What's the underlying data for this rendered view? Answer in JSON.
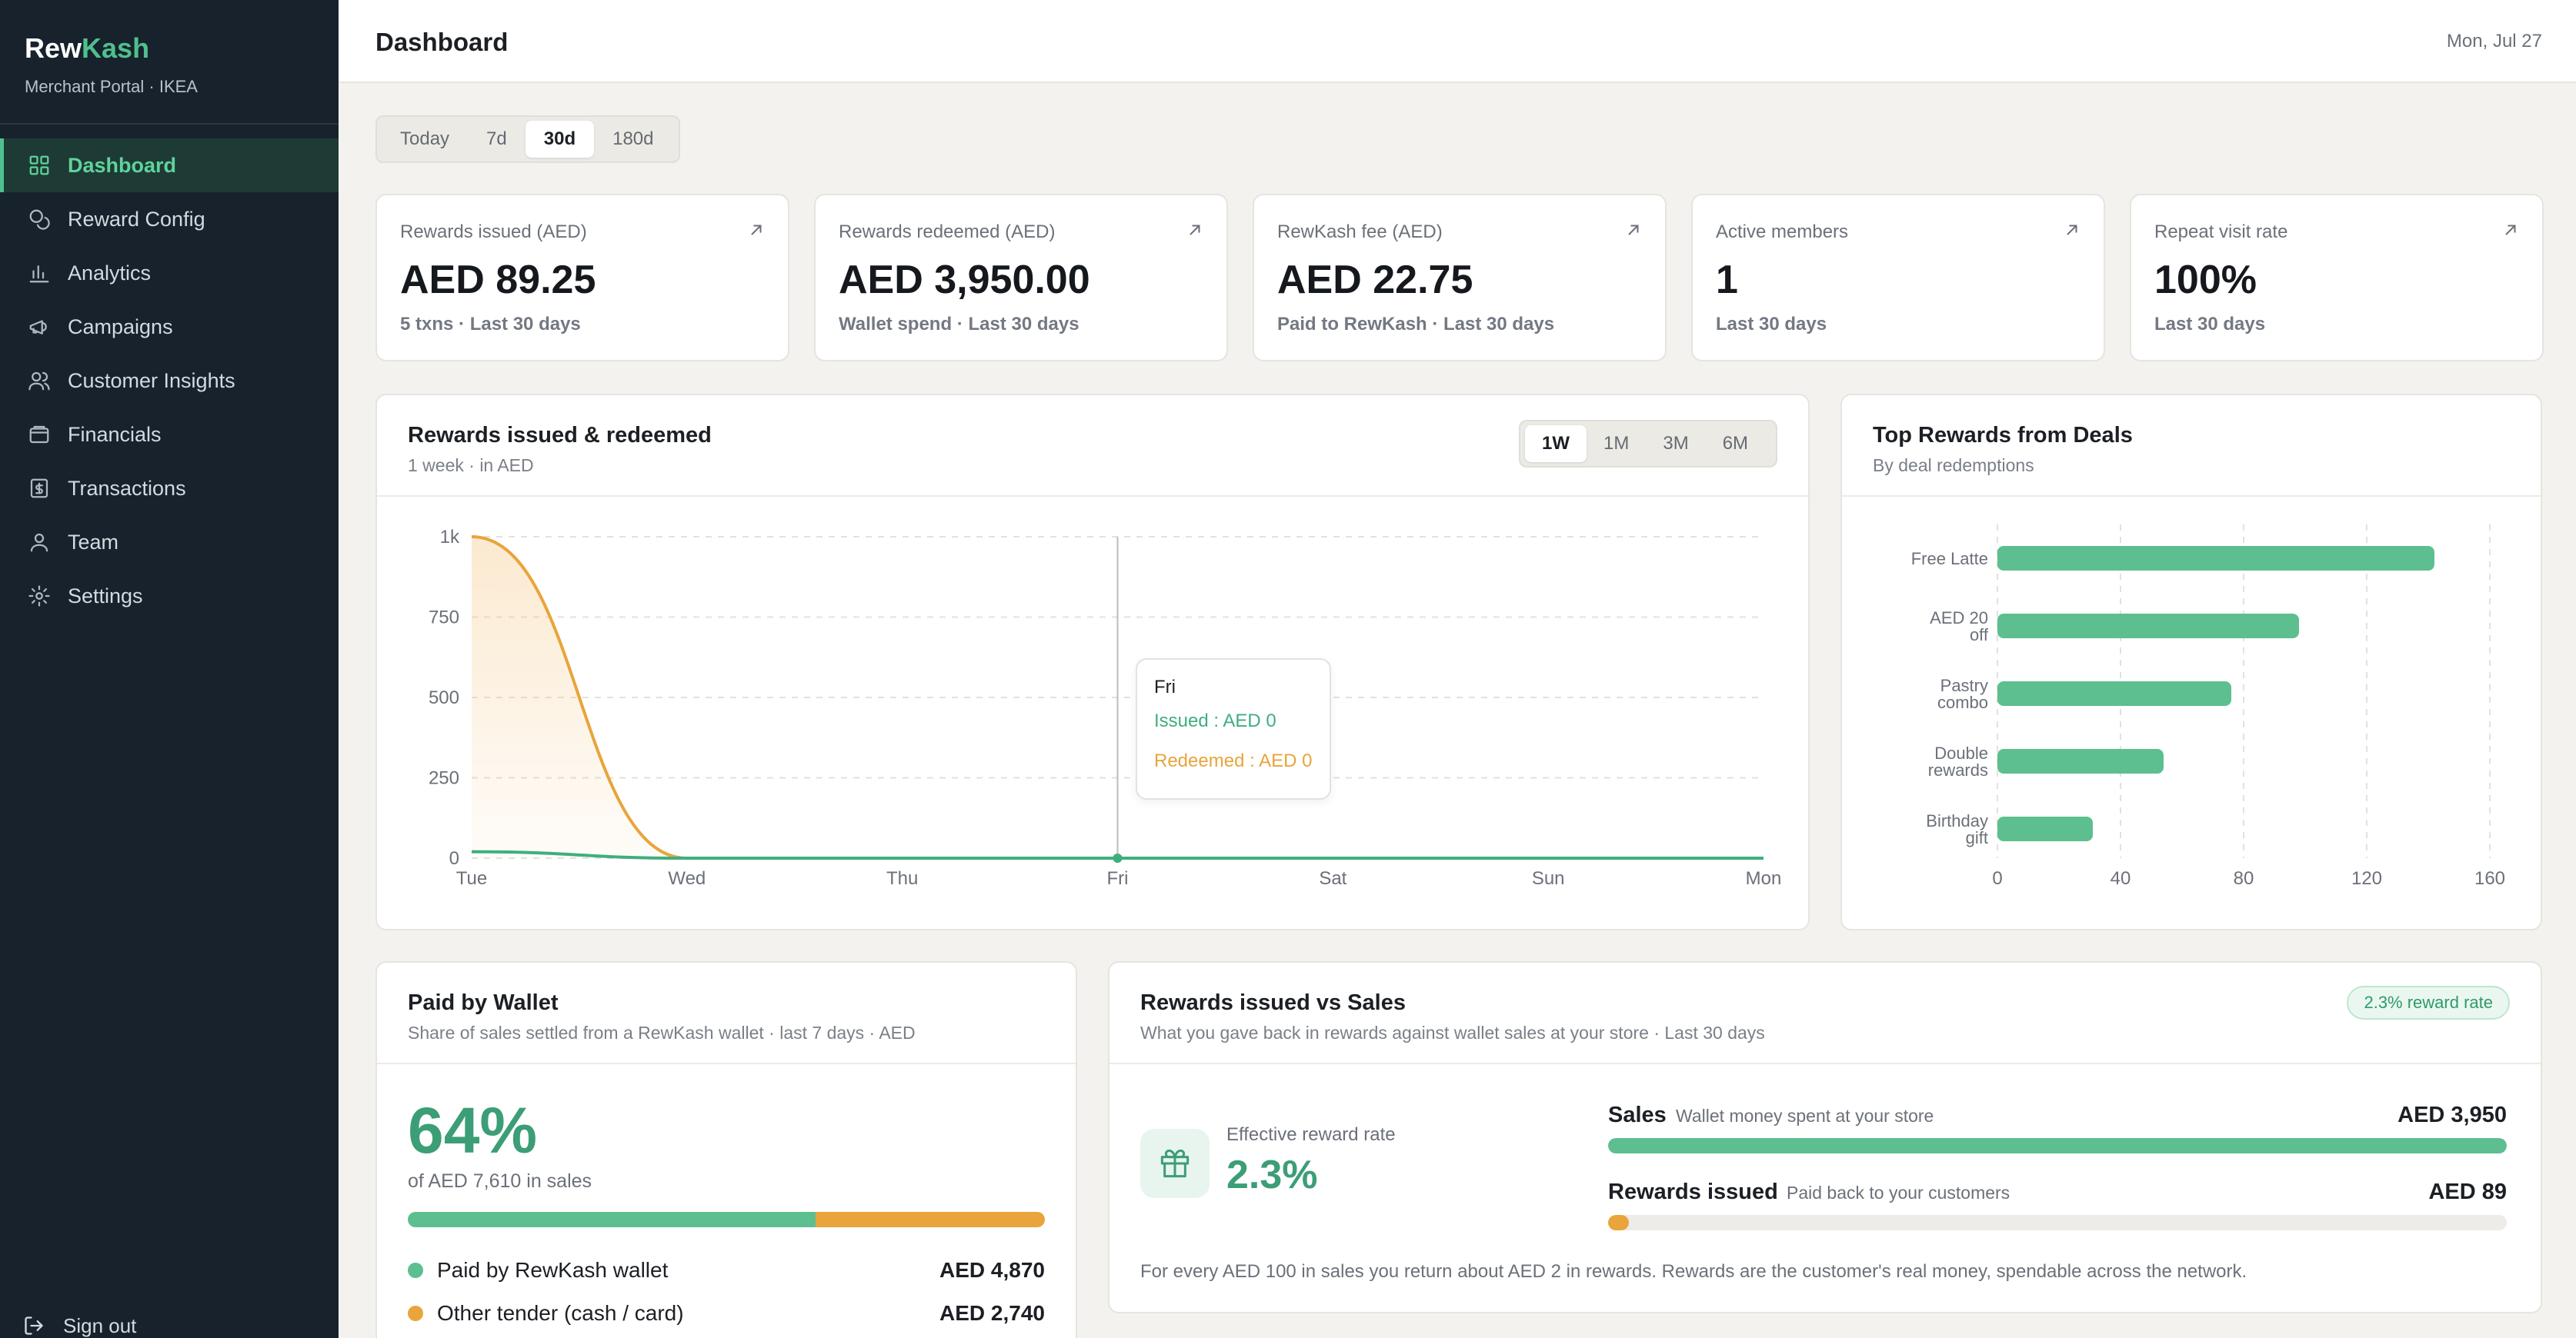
{
  "sidebar": {
    "brand_a": "Rew",
    "brand_b": "Kash",
    "subtitle": "Merchant Portal · IKEA",
    "items": [
      {
        "label": "Dashboard",
        "icon": "grid-icon",
        "active": true
      },
      {
        "label": "Reward Config",
        "icon": "coins-icon"
      },
      {
        "label": "Analytics",
        "icon": "bar-chart-icon"
      },
      {
        "label": "Campaigns",
        "icon": "megaphone-icon"
      },
      {
        "label": "Customer Insights",
        "icon": "users-icon"
      },
      {
        "label": "Financials",
        "icon": "wallet-icon"
      },
      {
        "label": "Transactions",
        "icon": "receipt-icon"
      },
      {
        "label": "Team",
        "icon": "user-icon"
      },
      {
        "label": "Settings",
        "icon": "gear-icon"
      }
    ],
    "signout": "Sign out"
  },
  "header": {
    "title": "Dashboard",
    "date": "Mon, Jul 27"
  },
  "range_tabs": {
    "items": [
      "Today",
      "7d",
      "30d",
      "180d"
    ],
    "active": "30d"
  },
  "kpis": [
    {
      "label": "Rewards issued (AED)",
      "value": "AED 89.25",
      "footer": "5 txns · Last 30 days"
    },
    {
      "label": "Rewards redeemed (AED)",
      "value": "AED 3,950.00",
      "footer": "Wallet spend · Last 30 days"
    },
    {
      "label": "RewKash fee (AED)",
      "value": "AED 22.75",
      "footer": "Paid to RewKash · Last 30 days"
    },
    {
      "label": "Active members",
      "value": "1",
      "footer": "Last 30 days"
    },
    {
      "label": "Repeat visit rate",
      "value": "100%",
      "footer": "Last 30 days"
    }
  ],
  "line_card": {
    "title": "Rewards issued & redeemed",
    "subtitle": "1 week · in AED",
    "tabs": [
      "1W",
      "1M",
      "3M",
      "6M"
    ],
    "active_tab": "1W",
    "tooltip": {
      "day": "Fri",
      "issued": "Issued : AED 0",
      "redeemed": "Redeemed : AED 0"
    }
  },
  "bar_card": {
    "title": "Top Rewards from Deals",
    "subtitle": "By deal redemptions"
  },
  "wallet_card": {
    "title": "Paid by Wallet",
    "subtitle": "Share of sales settled from a RewKash wallet · last 7 days · AED",
    "percent": "64%",
    "percent_value": 0.64,
    "of_sales": "of AED 7,610 in sales",
    "legend": [
      {
        "label": "Paid by RewKash wallet",
        "amount": "AED 4,870",
        "color": "#5dbf8f"
      },
      {
        "label": "Other tender (cash / card)",
        "amount": "AED 2,740",
        "color": "#e9a43b"
      }
    ]
  },
  "sales_card": {
    "title": "Rewards issued vs Sales",
    "subtitle": "What you gave back in rewards against wallet sales at your store · Last 30 days",
    "badge": "2.3% reward rate",
    "eff_label": "Effective reward rate",
    "eff_value": "2.3%",
    "sales_name": "Sales",
    "sales_desc": "Wallet money spent at your store",
    "sales_amount": "AED 3,950",
    "sales_fill": 1.0,
    "rew_name": "Rewards issued",
    "rew_desc": "Paid back to your customers",
    "rew_amount": "AED 89",
    "rew_fill": 0.023,
    "note": "For every AED 100 in sales you return about AED 2 in rewards. Rewards are the customer's real money, spendable across the network."
  },
  "chart_data": [
    {
      "type": "area",
      "x": [
        "Tue",
        "Wed",
        "Thu",
        "Fri",
        "Sat",
        "Sun",
        "Mon"
      ],
      "yticks": [
        "0",
        "250",
        "500",
        "750",
        "1k"
      ],
      "ylim": [
        0,
        1000
      ],
      "series": [
        {
          "name": "Issued",
          "color": "#3fae7f",
          "values": [
            20,
            0,
            0,
            0,
            0,
            0,
            0
          ]
        },
        {
          "name": "Redeemed",
          "color": "#e9a43b",
          "values": [
            1000,
            0,
            0,
            0,
            0,
            0,
            0
          ]
        }
      ],
      "highlight": "Fri"
    },
    {
      "type": "bar",
      "orientation": "horizontal",
      "categories": [
        "Free Latte",
        "AED 20 off",
        "Pastry combo",
        "Double rewards",
        "Birthday gift"
      ],
      "category_lines": [
        [
          "Free Latte"
        ],
        [
          "AED 20",
          "off"
        ],
        [
          "Pastry",
          "combo"
        ],
        [
          "Double",
          "rewards"
        ],
        [
          "Birthday",
          "gift"
        ]
      ],
      "values": [
        142,
        98,
        76,
        54,
        31
      ],
      "xticks": [
        "0",
        "40",
        "80",
        "120",
        "160"
      ],
      "xlim": [
        0,
        160
      ],
      "color": "#5dbf8f"
    }
  ]
}
